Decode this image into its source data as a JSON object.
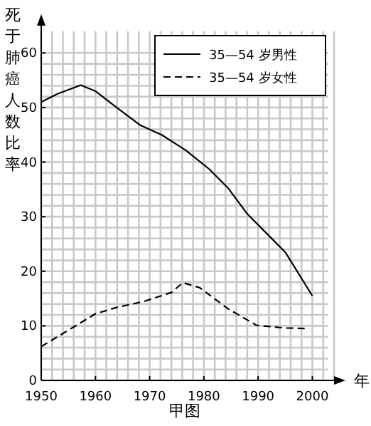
{
  "chart_data": {
    "type": "line",
    "ylabel": "死于肺癌人数比率",
    "xlabel": "年",
    "annotations": [
      "甲图"
    ],
    "xlim": [
      1950,
      2004
    ],
    "ylim": [
      0,
      65
    ],
    "xticks": [
      1950,
      1960,
      1970,
      1980,
      1990,
      2000
    ],
    "yticks": [
      0,
      10,
      20,
      30,
      40,
      50,
      60
    ],
    "grid": true,
    "legend": "top right",
    "series": [
      {
        "name": "35—54 岁男性",
        "color": "#000000",
        "line_style": "solid",
        "x": [
          1950,
          1953,
          1957.3,
          1960,
          1963.9,
          1968.2,
          1972.2,
          1976.6,
          1981,
          1984.5,
          1988,
          1991.5,
          1995,
          2000
        ],
        "values": [
          51,
          52.5,
          54.1,
          53,
          50,
          46.8,
          45,
          42.2,
          38.7,
          35.2,
          30.5,
          27,
          23.5,
          15.5
        ]
      },
      {
        "name": "35—54 岁女性",
        "color": "#000000",
        "line_style": "dashed",
        "x": [
          1950,
          1955,
          1960,
          1964,
          1968.7,
          1974,
          1976.1,
          1979.2,
          1984.5,
          1989.7,
          1995,
          1999.4
        ],
        "values": [
          6.2,
          9.2,
          12.2,
          13.4,
          14.4,
          16.1,
          17.9,
          17,
          13.1,
          10.1,
          9.6,
          9.5
        ]
      }
    ]
  }
}
